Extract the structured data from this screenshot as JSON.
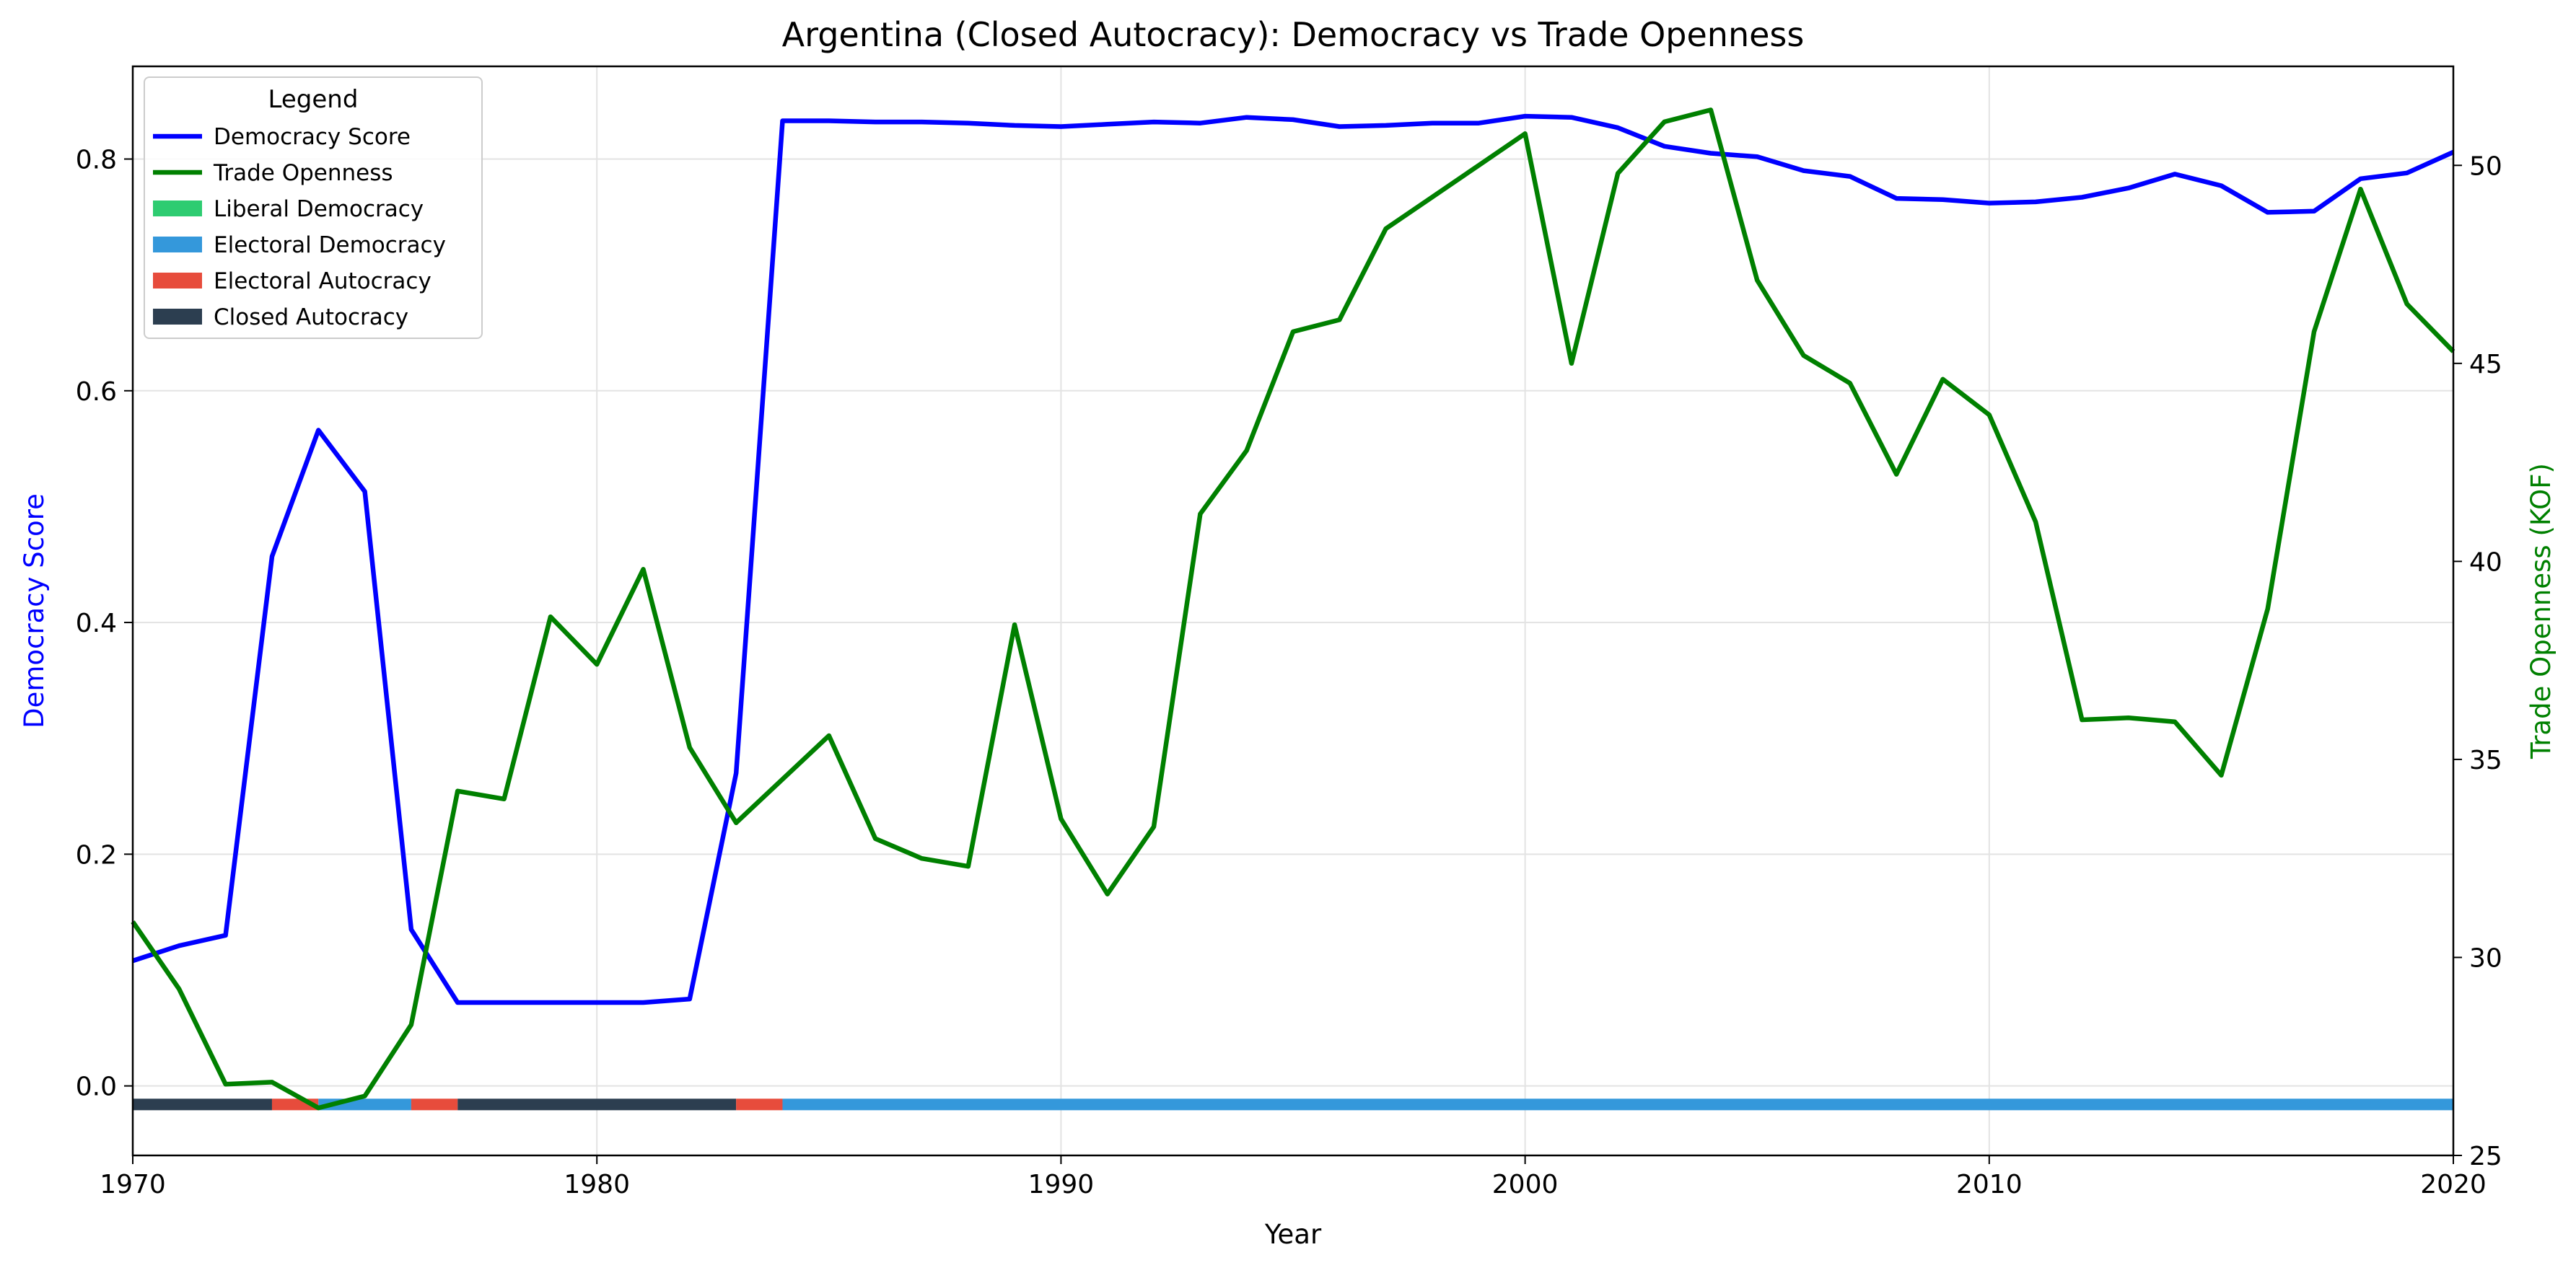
{
  "chart_data": {
    "type": "line",
    "title": "Argentina (Closed Autocracy): Democracy vs Trade Openness",
    "xlabel": "Year",
    "ylabel_left": "Democracy Score",
    "ylabel_right": "Trade Openness (KOF)",
    "xlim": [
      1970,
      2020
    ],
    "ylim_left": [
      -0.06,
      0.88
    ],
    "ylim_right": [
      25,
      52.5
    ],
    "x_ticks": [
      "1970",
      "1980",
      "1990",
      "2000",
      "2010",
      "2020"
    ],
    "y_left_ticks": [
      "0.0",
      "0.2",
      "0.4",
      "0.6",
      "0.8"
    ],
    "y_right_ticks": [
      "25",
      "30",
      "35",
      "40",
      "45",
      "50"
    ],
    "grid": true,
    "x": [
      1970,
      1971,
      1972,
      1973,
      1974,
      1975,
      1976,
      1977,
      1978,
      1979,
      1980,
      1981,
      1982,
      1983,
      1984,
      1985,
      1986,
      1987,
      1988,
      1989,
      1990,
      1991,
      1992,
      1993,
      1994,
      1995,
      1996,
      1997,
      1998,
      1999,
      2000,
      2001,
      2002,
      2003,
      2004,
      2005,
      2006,
      2007,
      2008,
      2009,
      2010,
      2011,
      2012,
      2013,
      2014,
      2015,
      2016,
      2017,
      2018,
      2019,
      2020
    ],
    "series": [
      {
        "name": "Democracy Score",
        "axis": "left",
        "color": "#0000ff",
        "values": [
          0.108,
          0.121,
          0.13,
          0.457,
          0.566,
          0.513,
          0.135,
          0.072,
          0.072,
          0.072,
          0.072,
          0.072,
          0.075,
          0.27,
          0.833,
          0.833,
          0.832,
          0.832,
          0.831,
          0.829,
          0.828,
          0.83,
          0.832,
          0.831,
          0.836,
          0.834,
          0.828,
          0.829,
          0.831,
          0.831,
          0.837,
          0.836,
          0.827,
          0.811,
          0.805,
          0.802,
          0.79,
          0.785,
          0.766,
          0.765,
          0.762,
          0.763,
          0.767,
          0.775,
          0.787,
          0.777,
          0.754,
          0.755,
          0.783,
          0.788,
          0.806
        ]
      },
      {
        "name": "Trade Openness",
        "axis": "right",
        "color": "#008000",
        "values": [
          30.9,
          29.2,
          26.8,
          26.85,
          26.2,
          26.5,
          28.3,
          34.2,
          34.0,
          38.6,
          37.4,
          39.8,
          35.3,
          33.4,
          34.5,
          35.6,
          33.0,
          32.5,
          32.3,
          38.4,
          33.5,
          31.6,
          33.3,
          41.2,
          42.8,
          45.8,
          46.1,
          48.4,
          49.2,
          50.0,
          50.8,
          45.0,
          49.8,
          51.1,
          51.4,
          47.1,
          45.2,
          44.5,
          42.2,
          44.6,
          43.7,
          41.0,
          36.0,
          36.05,
          35.95,
          34.6,
          38.8,
          45.8,
          49.4,
          46.5,
          45.3
        ]
      }
    ],
    "regime_bar": {
      "segments": [
        {
          "start": 1970,
          "end": 1973,
          "regime": "Closed Autocracy"
        },
        {
          "start": 1973,
          "end": 1974,
          "regime": "Electoral Autocracy"
        },
        {
          "start": 1974,
          "end": 1976,
          "regime": "Electoral Democracy"
        },
        {
          "start": 1976,
          "end": 1977,
          "regime": "Electoral Autocracy"
        },
        {
          "start": 1977,
          "end": 1983,
          "regime": "Closed Autocracy"
        },
        {
          "start": 1983,
          "end": 1984,
          "regime": "Electoral Autocracy"
        },
        {
          "start": 1984,
          "end": 2020,
          "regime": "Electoral Democracy"
        }
      ],
      "level": -0.016
    },
    "legend": {
      "title": "Legend",
      "placement": "top-left",
      "entries": [
        {
          "label": "Democracy Score",
          "kind": "line",
          "color": "#0000ff"
        },
        {
          "label": "Trade Openness",
          "kind": "line",
          "color": "#008000"
        },
        {
          "label": "Liberal Democracy",
          "kind": "patch",
          "color": "#2ecc71"
        },
        {
          "label": "Electoral Democracy",
          "kind": "patch",
          "color": "#3498db"
        },
        {
          "label": "Electoral Autocracy",
          "kind": "patch",
          "color": "#e74c3c"
        },
        {
          "label": "Closed Autocracy",
          "kind": "patch",
          "color": "#2c3e50"
        }
      ]
    },
    "regime_colors": {
      "Liberal Democracy": "#2ecc71",
      "Electoral Democracy": "#3498db",
      "Electoral Autocracy": "#e74c3c",
      "Closed Autocracy": "#2c3e50"
    }
  }
}
